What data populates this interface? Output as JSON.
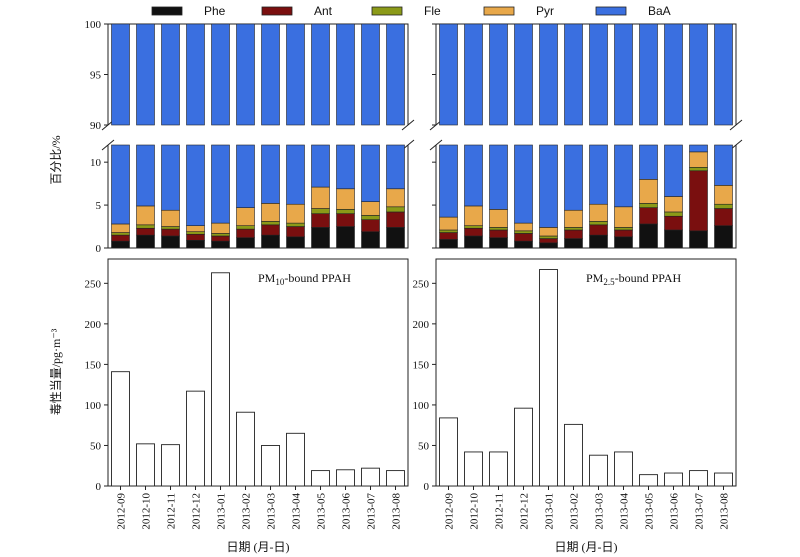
{
  "chart_data": [
    {
      "type": "bar",
      "stacked": true,
      "panel": "top-left",
      "legend": [
        "Phe",
        "Ant",
        "Fle",
        "Pyr",
        "BaA"
      ],
      "colors": {
        "Phe": "#111111",
        "Ant": "#7a0f0f",
        "Fle": "#8b9a18",
        "Pyr": "#e8a84a",
        "BaA": "#3a6fe0"
      },
      "categories": [
        "2012-09",
        "2012-10",
        "2012-11",
        "2012-12",
        "2013-01",
        "2013-02",
        "2013-03",
        "2013-04",
        "2013-05",
        "2013-06",
        "2013-07",
        "2013-08"
      ],
      "series": [
        {
          "name": "Phe",
          "values": [
            0.8,
            1.5,
            1.4,
            0.9,
            0.8,
            1.2,
            1.5,
            1.3,
            2.4,
            2.5,
            1.9,
            2.4
          ]
        },
        {
          "name": "Ant",
          "values": [
            0.7,
            0.8,
            0.8,
            0.7,
            0.6,
            1.0,
            1.2,
            1.2,
            1.6,
            1.5,
            1.4,
            1.8
          ]
        },
        {
          "name": "Fle",
          "values": [
            0.3,
            0.4,
            0.3,
            0.3,
            0.3,
            0.4,
            0.4,
            0.4,
            0.6,
            0.5,
            0.5,
            0.6
          ]
        },
        {
          "name": "Pyr",
          "values": [
            1.0,
            2.2,
            1.9,
            0.7,
            1.2,
            2.1,
            2.1,
            2.2,
            2.5,
            2.4,
            1.6,
            2.1
          ]
        },
        {
          "name": "BaA",
          "values": [
            97.2,
            95.1,
            95.6,
            97.4,
            97.1,
            95.3,
            94.8,
            94.9,
            92.9,
            93.1,
            94.6,
            93.1
          ]
        }
      ],
      "ylabel": "百分比/%",
      "ylim": [
        0,
        100
      ],
      "ybreak": [
        12,
        90
      ],
      "yticks": [
        0,
        5,
        10,
        90,
        95,
        100
      ]
    },
    {
      "type": "bar",
      "stacked": true,
      "panel": "top-right",
      "categories": [
        "2012-09",
        "2012-10",
        "2012-11",
        "2012-12",
        "2013-01",
        "2013-02",
        "2013-03",
        "2013-04",
        "2013-05",
        "2013-06",
        "2013-07",
        "2013-08"
      ],
      "series": [
        {
          "name": "Phe",
          "values": [
            1.0,
            1.4,
            1.2,
            0.8,
            0.6,
            1.1,
            1.5,
            1.3,
            2.8,
            2.1,
            2.0,
            2.6
          ]
        },
        {
          "name": "Ant",
          "values": [
            0.8,
            0.9,
            0.9,
            0.9,
            0.5,
            1.0,
            1.2,
            0.8,
            1.9,
            1.6,
            7.0,
            2.0
          ]
        },
        {
          "name": "Fle",
          "values": [
            0.3,
            0.3,
            0.3,
            0.3,
            0.3,
            0.3,
            0.4,
            0.3,
            0.5,
            0.5,
            0.4,
            0.5
          ]
        },
        {
          "name": "Pyr",
          "values": [
            1.5,
            2.3,
            2.1,
            0.9,
            1.0,
            2.0,
            2.0,
            2.4,
            2.8,
            1.8,
            1.8,
            2.2
          ]
        },
        {
          "name": "BaA",
          "values": [
            96.4,
            95.1,
            95.5,
            97.1,
            97.6,
            95.6,
            94.9,
            95.2,
            92.0,
            94.0,
            88.8,
            92.7
          ]
        }
      ],
      "ylim": [
        0,
        100
      ],
      "ybreak": [
        12,
        90
      ]
    },
    {
      "type": "bar",
      "panel": "bottom-left",
      "annotation": "PM10-bound PPAH",
      "categories": [
        "2012-09",
        "2012-10",
        "2012-11",
        "2012-12",
        "2013-01",
        "2013-02",
        "2013-03",
        "2013-04",
        "2013-05",
        "2013-06",
        "2013-07",
        "2013-08"
      ],
      "values": [
        141,
        52,
        51,
        117,
        263,
        91,
        50,
        65,
        19,
        20,
        22,
        19
      ],
      "ylabel": "毒性当量/pg·m⁻³",
      "xlabel": "日期 (月-日)",
      "ylim": [
        0,
        280
      ],
      "yticks": [
        0,
        50,
        100,
        150,
        200,
        250
      ]
    },
    {
      "type": "bar",
      "panel": "bottom-right",
      "annotation": "PM2.5-bound PPAH",
      "categories": [
        "2012-09",
        "2012-10",
        "2012-11",
        "2012-12",
        "2013-01",
        "2013-02",
        "2013-03",
        "2013-04",
        "2013-05",
        "2013-06",
        "2013-07",
        "2013-08"
      ],
      "values": [
        84,
        42,
        42,
        96,
        267,
        76,
        38,
        42,
        14,
        16,
        19,
        16
      ],
      "xlabel": "日期 (月-日)",
      "ylim": [
        0,
        280
      ]
    }
  ],
  "labels": {
    "legend": [
      "Phe",
      "Ant",
      "Fle",
      "Pyr",
      "BaA"
    ],
    "top_ylabel": "百分比/%",
    "bottom_ylabel": "毒性当量/pg·m⁻³",
    "xlabel": "日期 (月-日)",
    "annot_left_pm": "PM",
    "annot_left_sub": "10",
    "annot_left_rest": "-bound PPAH",
    "annot_right_pm": "PM",
    "annot_right_sub": "2.5",
    "annot_right_rest": "-bound PPAH"
  }
}
